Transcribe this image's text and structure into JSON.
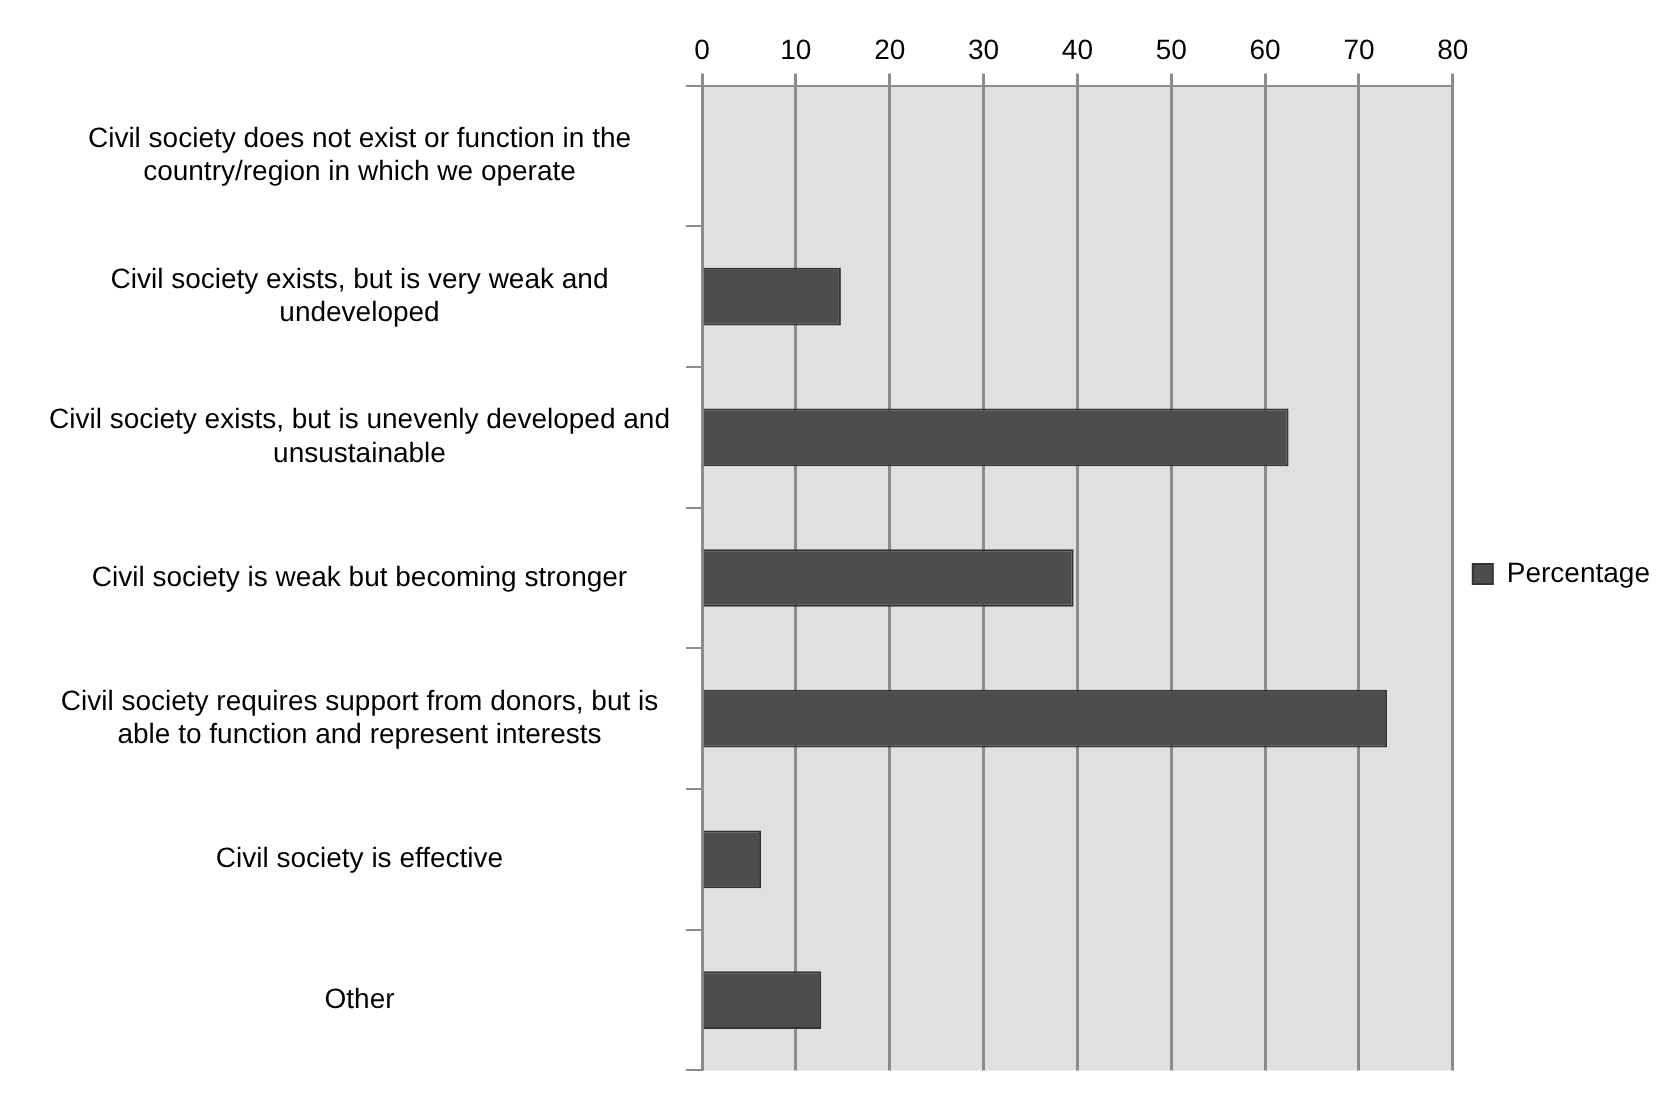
{
  "chart_data": {
    "type": "bar",
    "orientation": "horizontal",
    "categories": [
      "Civil society does not exist or function in the country/region in which we operate",
      "Civil society exists, but is very weak and undeveloped",
      "Civil society exists, but is unevenly developed and unsustainable",
      "Civil society is weak but becoming stronger",
      "Civil society requires support from donors, but is able to function and represent interests",
      "Civil society is effective",
      "Other"
    ],
    "series": [
      {
        "name": "Percentage",
        "color": "#4d4d4d",
        "values": [
          0,
          14.8,
          62.5,
          39.6,
          73.0,
          6.3,
          12.7
        ]
      }
    ],
    "xlim": [
      0,
      80
    ],
    "xticks": [
      0,
      10,
      20,
      30,
      40,
      50,
      60,
      70,
      80
    ],
    "grid": "x",
    "legend": "right"
  }
}
